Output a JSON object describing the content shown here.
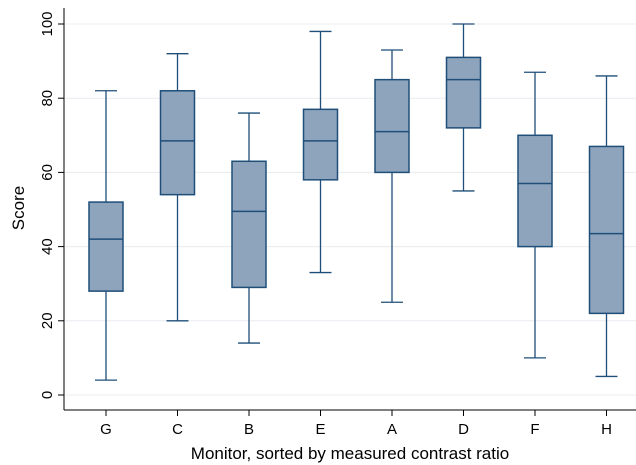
{
  "chart_data": {
    "type": "boxplot",
    "xlabel": "Monitor, sorted by measured contrast ratio",
    "ylabel": "Score",
    "ylim": [
      -4,
      104
    ],
    "yticks": [
      0,
      20,
      40,
      60,
      80,
      100
    ],
    "grid": "horizontal",
    "colors": {
      "box_fill": "#8da4bc",
      "box_stroke": "#1f4e79",
      "grid": "#e8ecef",
      "axis": "#000000"
    },
    "categories": [
      "G",
      "C",
      "B",
      "E",
      "A",
      "D",
      "F",
      "H"
    ],
    "boxes": [
      {
        "label": "G",
        "min": 4,
        "q1": 28,
        "median": 42,
        "q3": 52,
        "max": 82
      },
      {
        "label": "C",
        "min": 20,
        "q1": 54,
        "median": 68.5,
        "q3": 82,
        "max": 92
      },
      {
        "label": "B",
        "min": 14,
        "q1": 29,
        "median": 49.5,
        "q3": 63,
        "max": 76
      },
      {
        "label": "E",
        "min": 33,
        "q1": 58,
        "median": 68.5,
        "q3": 77,
        "max": 98
      },
      {
        "label": "A",
        "min": 25,
        "q1": 60,
        "median": 71,
        "q3": 85,
        "max": 93
      },
      {
        "label": "D",
        "min": 55,
        "q1": 72,
        "median": 85,
        "q3": 91,
        "max": 100
      },
      {
        "label": "F",
        "min": 10,
        "q1": 40,
        "median": 57,
        "q3": 70,
        "max": 87
      },
      {
        "label": "H",
        "min": 5,
        "q1": 22,
        "median": 43.5,
        "q3": 67,
        "max": 86
      }
    ]
  }
}
